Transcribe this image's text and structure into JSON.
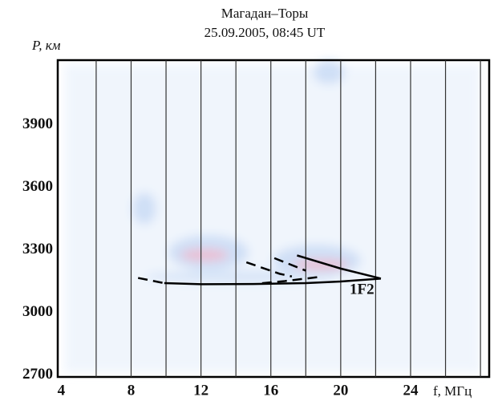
{
  "chart_data": {
    "type": "line",
    "title": "Магадан–Торы",
    "subtitle": "25.09.2005, 08:45 UT",
    "x_label": "f, МГц",
    "y_label": "P, км",
    "xlim": [
      3.8,
      28.5
    ],
    "ylim": [
      2690,
      4210
    ],
    "xticks": [
      4,
      8,
      12,
      16,
      20,
      24
    ],
    "yticks": [
      2700,
      3000,
      3300,
      3600,
      3900
    ],
    "vertical_lines": [
      6,
      8,
      10,
      12,
      14,
      16,
      18,
      20,
      22,
      24,
      26,
      28
    ],
    "annotation": "1F2",
    "series": [
      {
        "color": "#000000",
        "dashed": false,
        "x": [
          9.9,
          12,
          15,
          18,
          20,
          22.3
        ],
        "values": [
          3140,
          3135,
          3136,
          3140,
          3148,
          3162
        ]
      },
      {
        "color": "#000000",
        "dashed": false,
        "x": [
          17.5,
          20,
          22.3
        ],
        "values": [
          3273,
          3210,
          3162
        ]
      },
      {
        "color": "#000000",
        "dashed": true,
        "x": [
          8.4,
          9.9
        ],
        "values": [
          3165,
          3140
        ]
      },
      {
        "color": "#000000",
        "dashed": true,
        "x": [
          14.6,
          16.5,
          17.2
        ],
        "values": [
          3240,
          3185,
          3172
        ]
      },
      {
        "color": "#000000",
        "dashed": true,
        "x": [
          15.5,
          16.8,
          18.8
        ],
        "values": [
          3140,
          3150,
          3170
        ]
      },
      {
        "color": "#000000",
        "dashed": true,
        "x": [
          16.2,
          18
        ],
        "values": [
          3260,
          3200
        ]
      }
    ]
  }
}
